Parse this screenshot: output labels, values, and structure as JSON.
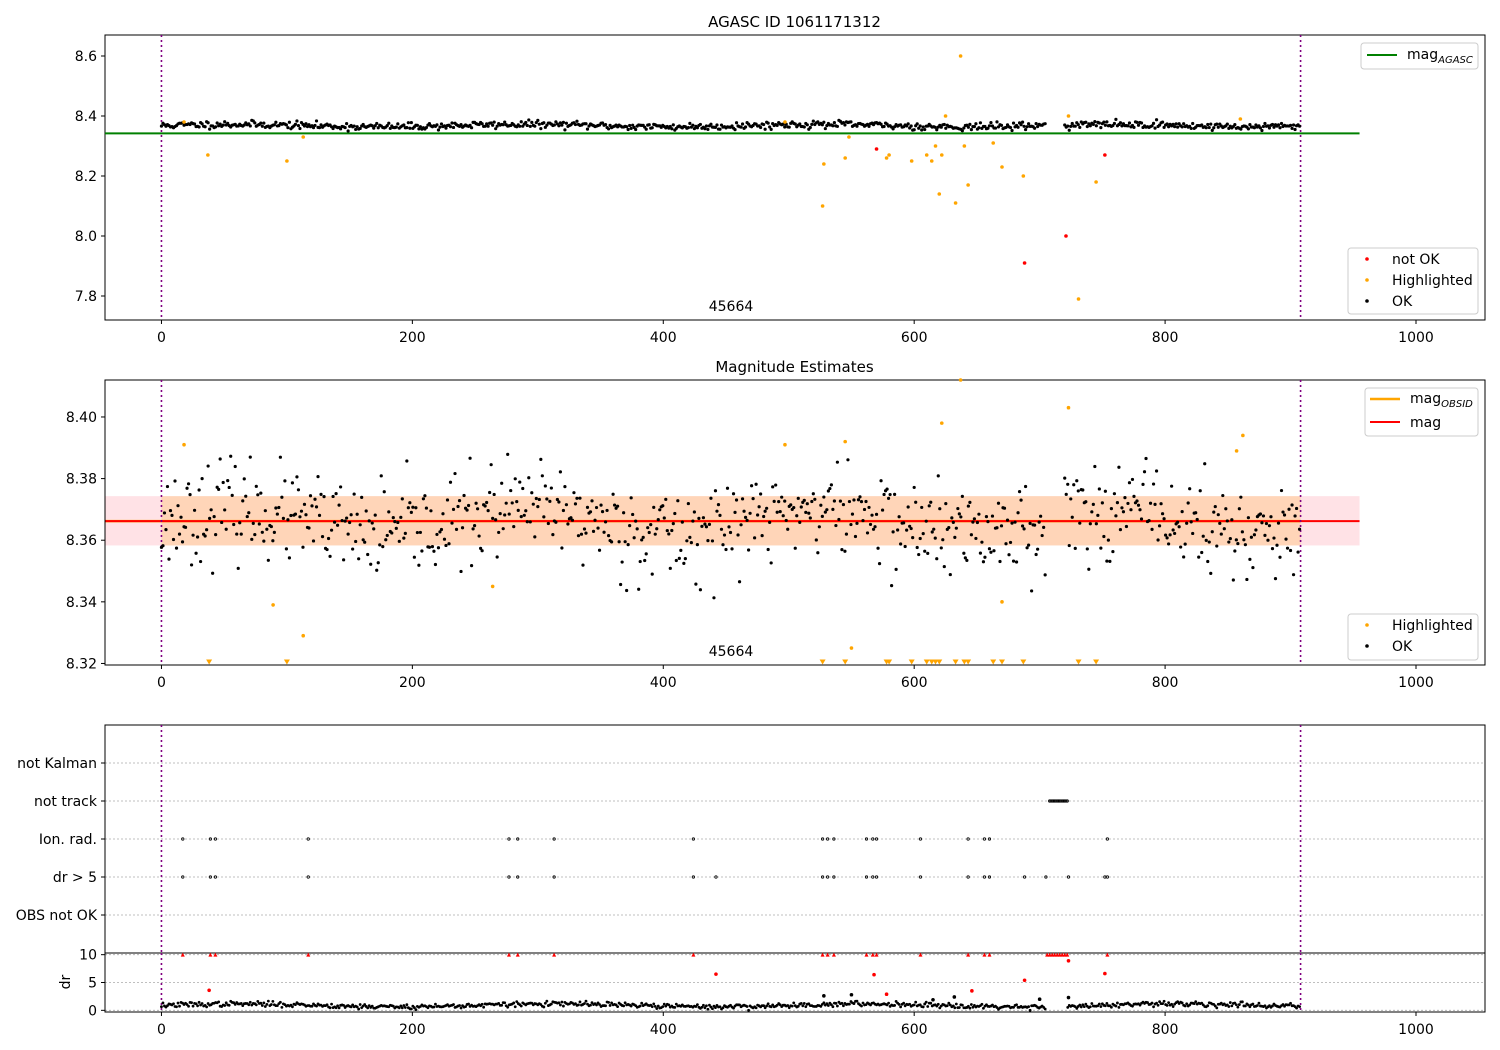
{
  "chart_data": [
    {
      "type": "scatter",
      "title": "AGASC ID 1061171312",
      "xlim": [
        -45,
        1055
      ],
      "ylim": [
        7.72,
        8.67
      ],
      "xticks": [
        "0",
        "200",
        "400",
        "600",
        "800",
        "1000"
      ],
      "yticks": [
        "7.8",
        "8.0",
        "8.2",
        "8.4",
        "8.6"
      ],
      "ytick_values": [
        7.8,
        8.0,
        8.2,
        8.4,
        8.6
      ],
      "vlines": [
        0,
        908
      ],
      "annotation": {
        "text": "45664",
        "x": 454,
        "y": 7.75
      },
      "reference_lines": [
        {
          "name": "mag_AGASC",
          "legend_main": "mag",
          "legend_sub": "AGASC",
          "y": 8.342,
          "x_range": [
            -45,
            955
          ],
          "color": "#008000"
        }
      ],
      "ok_baseline": 8.368,
      "ok_noise": 0.006,
      "ok_gaps": [
        [
          705,
          719
        ]
      ],
      "series": [
        {
          "name": "not OK",
          "color": "#ff0000",
          "points": [
            [
              570,
              8.29
            ],
            [
              688,
              7.91
            ],
            [
              721,
              8.0
            ],
            [
              752,
              8.27
            ]
          ]
        },
        {
          "name": "Highlighted",
          "color": "#ffa500",
          "points": [
            [
              18,
              8.38
            ],
            [
              37,
              8.27
            ],
            [
              100,
              8.25
            ],
            [
              113,
              8.33
            ],
            [
              497,
              8.38
            ],
            [
              528,
              8.24
            ],
            [
              527,
              8.1
            ],
            [
              545,
              8.26
            ],
            [
              548,
              8.33
            ],
            [
              578,
              8.26
            ],
            [
              580,
              8.27
            ],
            [
              598,
              8.25
            ],
            [
              610,
              8.27
            ],
            [
              614,
              8.25
            ],
            [
              617,
              8.3
            ],
            [
              620,
              8.14
            ],
            [
              622,
              8.27
            ],
            [
              625,
              8.4
            ],
            [
              633,
              8.11
            ],
            [
              637,
              8.6
            ],
            [
              640,
              8.3
            ],
            [
              643,
              8.17
            ],
            [
              663,
              8.31
            ],
            [
              670,
              8.23
            ],
            [
              687,
              8.2
            ],
            [
              723,
              8.4
            ],
            [
              731,
              7.79
            ],
            [
              745,
              8.18
            ],
            [
              860,
              8.39
            ]
          ]
        },
        {
          "name": "OK",
          "color": "#000000",
          "points": []
        }
      ],
      "legends": [
        {
          "position": "upper right",
          "entries": [
            "mag_AGASC"
          ]
        },
        {
          "position": "lower right",
          "entries": [
            "not OK",
            "Highlighted",
            "OK"
          ]
        }
      ]
    },
    {
      "type": "scatter",
      "title": "Magnitude Estimates",
      "xlim": [
        -45,
        1055
      ],
      "ylim": [
        8.3195,
        8.412
      ],
      "xticks": [
        "0",
        "200",
        "400",
        "600",
        "800",
        "1000"
      ],
      "yticks": [
        "8.32",
        "8.34",
        "8.36",
        "8.38",
        "8.40"
      ],
      "ytick_values": [
        8.32,
        8.34,
        8.36,
        8.38,
        8.4
      ],
      "vlines": [
        0,
        908
      ],
      "annotation": {
        "text": "45664",
        "x": 454,
        "y": 8.3225
      },
      "bands": [
        {
          "y_range": [
            8.3583,
            8.3743
          ],
          "x_range": [
            -45,
            955
          ],
          "color": "#ffb6c1"
        }
      ],
      "reference_lines": [
        {
          "name": "mag_OBSID",
          "legend_main": "mag",
          "legend_sub": "OBSID",
          "y": 8.3662,
          "x_range": [
            -45,
            908
          ],
          "color": "#ffa500",
          "band": [
            8.3583,
            8.3743
          ]
        },
        {
          "name": "mag",
          "legend_main": "mag",
          "legend_sub": "",
          "y": 8.3662,
          "x_range": [
            -45,
            955
          ],
          "color": "#ff0000"
        }
      ],
      "ok_baseline": 8.366,
      "ok_noise": 0.0075,
      "ok_gaps": [
        [
          705,
          719
        ]
      ],
      "series": [
        {
          "name": "Highlighted",
          "color": "#ffa500",
          "points": [
            [
              18,
              8.391
            ],
            [
              89,
              8.339
            ],
            [
              264,
              8.345
            ],
            [
              113,
              8.329
            ],
            [
              497,
              8.391
            ],
            [
              545,
              8.392
            ],
            [
              550,
              8.325
            ],
            [
              622,
              8.398
            ],
            [
              637,
              8.412
            ],
            [
              670,
              8.34
            ],
            [
              723,
              8.403
            ],
            [
              857,
              8.389
            ],
            [
              862,
              8.394
            ]
          ]
        },
        {
          "name": "Highlighted (below axis)",
          "color": "#ffa500",
          "points": [
            [
              38,
              8.32
            ],
            [
              100,
              8.32
            ],
            [
              527,
              8.32
            ],
            [
              545,
              8.32
            ],
            [
              578,
              8.32
            ],
            [
              580,
              8.32
            ],
            [
              598,
              8.32
            ],
            [
              610,
              8.32
            ],
            [
              614,
              8.32
            ],
            [
              617,
              8.32
            ],
            [
              620,
              8.32
            ],
            [
              633,
              8.32
            ],
            [
              640,
              8.32
            ],
            [
              643,
              8.32
            ],
            [
              663,
              8.32
            ],
            [
              670,
              8.32
            ],
            [
              687,
              8.32
            ],
            [
              731,
              8.32
            ],
            [
              745,
              8.32
            ]
          ]
        },
        {
          "name": "OK",
          "color": "#000000",
          "points": []
        }
      ],
      "legends": [
        {
          "position": "upper right",
          "entries": [
            "mag_OBSID",
            "mag"
          ]
        },
        {
          "position": "lower right",
          "entries": [
            "Highlighted",
            "OK"
          ]
        }
      ]
    },
    {
      "type": "scatter",
      "title": "",
      "xlim": [
        -45,
        1055
      ],
      "ylim": [
        0,
        6
      ],
      "xticks": [],
      "yticks": [
        "not Kalman",
        "not track",
        "Ion. rad.",
        "dr > 5",
        "OBS not OK"
      ],
      "ytick_values": [
        5,
        4,
        3,
        2,
        1
      ],
      "vlines": [
        0,
        908
      ],
      "series": [
        {
          "name": "not track",
          "color": "#000000",
          "row": 4,
          "x": [
            708,
            709,
            710,
            711,
            712,
            713,
            714,
            715,
            716,
            717,
            718,
            719,
            720,
            721,
            722
          ]
        },
        {
          "name": "Ion. rad.",
          "color": "#000000",
          "row": 3,
          "x": [
            17,
            39,
            43,
            117,
            277,
            284,
            313,
            424,
            527,
            531,
            536,
            562,
            567,
            570,
            605,
            643,
            656,
            660,
            754
          ]
        },
        {
          "name": "dr > 5",
          "color": "#000000",
          "row": 2,
          "x": [
            17,
            39,
            43,
            117,
            277,
            284,
            313,
            424,
            442,
            527,
            531,
            536,
            562,
            567,
            570,
            605,
            643,
            656,
            660,
            688,
            705,
            723,
            752,
            754
          ]
        }
      ]
    },
    {
      "type": "scatter",
      "title": "",
      "ylabel": "dr",
      "xlim": [
        -45,
        1055
      ],
      "ylim": [
        -0.3,
        10.3
      ],
      "xticks": [
        "0",
        "200",
        "400",
        "600",
        "800",
        "1000"
      ],
      "yticks": [
        "0",
        "5",
        "10"
      ],
      "ytick_values": [
        0,
        5,
        10
      ],
      "vlines": [
        0,
        908
      ],
      "base_level": 0.9,
      "base_noise": 0.45,
      "series": [
        {
          "name": "dr (clipped at 10)",
          "color": "#ff0000",
          "marker": "triangle",
          "points": [
            [
              17,
              10
            ],
            [
              39,
              10
            ],
            [
              43,
              10
            ],
            [
              117,
              10
            ],
            [
              277,
              10
            ],
            [
              284,
              10
            ],
            [
              313,
              10
            ],
            [
              424,
              10
            ],
            [
              527,
              10
            ],
            [
              531,
              10
            ],
            [
              536,
              10
            ],
            [
              562,
              10
            ],
            [
              567,
              10
            ],
            [
              570,
              10
            ],
            [
              605,
              10
            ],
            [
              643,
              10
            ],
            [
              656,
              10
            ],
            [
              660,
              10
            ],
            [
              706,
              10
            ],
            [
              708,
              10
            ],
            [
              710,
              10
            ],
            [
              712,
              10
            ],
            [
              714,
              10
            ],
            [
              716,
              10
            ],
            [
              718,
              10
            ],
            [
              720,
              10
            ],
            [
              722,
              10
            ],
            [
              754,
              10
            ]
          ]
        },
        {
          "name": "dr > 5",
          "color": "#ff0000",
          "points": [
            [
              38,
              3.6
            ],
            [
              442,
              6.5
            ],
            [
              568,
              6.4
            ],
            [
              578,
              2.9
            ],
            [
              646,
              3.5
            ],
            [
              688,
              5.4
            ],
            [
              723,
              8.9
            ],
            [
              752,
              6.6
            ]
          ]
        },
        {
          "name": "dr",
          "color": "#000000",
          "points": [
            [
              528,
              2.6
            ],
            [
              550,
              2.8
            ],
            [
              615,
              1.9
            ],
            [
              632,
              2.4
            ],
            [
              700,
              2.0
            ],
            [
              723,
              2.3
            ]
          ]
        }
      ]
    }
  ]
}
